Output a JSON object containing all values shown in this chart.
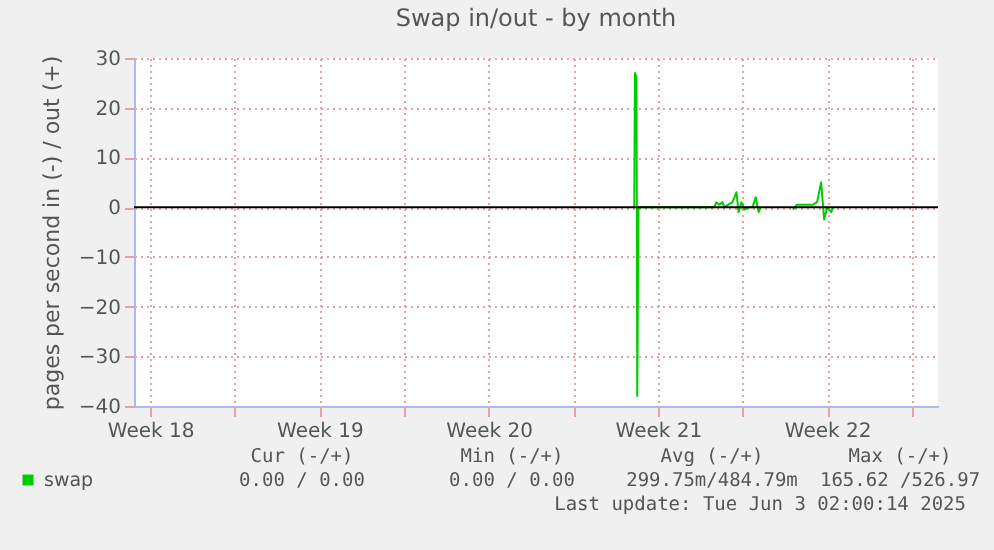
{
  "chart_data": {
    "type": "line",
    "title": "Swap in/out - by month",
    "ylabel": "pages per second in (-) / out (+)",
    "x": [
      "2025-05-21T12:30",
      "2025-05-21T13:15",
      "2025-05-21T14:45",
      "2025-05-21T15:30",
      "2025-05-21T16:40",
      "2025-05-24T20:00",
      "2025-05-24T22:00",
      "2025-05-25T00:50",
      "2025-05-25T04:00",
      "2025-05-25T06:00",
      "2025-05-25T10:00",
      "2025-05-25T14:00",
      "2025-05-25T18:00",
      "2025-05-25T20:00",
      "2025-05-25T23:00",
      "2025-05-26T02:00",
      "2025-05-26T06:00",
      "2025-05-26T10:00",
      "2025-05-26T13:00",
      "2025-05-26T16:00",
      "2025-05-26T18:00",
      "2025-05-27T08:00",
      "2025-05-28T02:00",
      "2025-05-28T06:00",
      "2025-05-28T14:00",
      "2025-05-28T22:00",
      "2025-05-29T02:00",
      "2025-05-29T06:00",
      "2025-05-29T09:00",
      "2025-05-29T12:00",
      "2025-05-29T16:00",
      "2025-05-29T18:00"
    ],
    "series": [
      {
        "name": "swap",
        "color": "#00cc00",
        "values": [
          0,
          27,
          26,
          -38,
          0,
          0,
          1,
          0.5,
          1,
          0,
          0.5,
          1,
          3,
          -1,
          1,
          -0.5,
          0,
          0,
          2,
          -1,
          0,
          null,
          -0.5,
          0.5,
          0.5,
          0.5,
          1,
          5,
          -2.5,
          0,
          -1,
          0
        ]
      }
    ],
    "xlim": [
      "2025-04-30T20:00",
      "2025-06-03T02:00"
    ],
    "xticks": [
      {
        "value": "2025-05-01T12:00",
        "label": "Week 18"
      },
      {
        "value": "2025-05-05T00:00",
        "label": null
      },
      {
        "value": "2025-05-08T12:00",
        "label": "Week 19"
      },
      {
        "value": "2025-05-12T00:00",
        "label": null
      },
      {
        "value": "2025-05-15T12:00",
        "label": "Week 20"
      },
      {
        "value": "2025-05-19T00:00",
        "label": null
      },
      {
        "value": "2025-05-22T12:00",
        "label": "Week 21"
      },
      {
        "value": "2025-05-26T00:00",
        "label": null
      },
      {
        "value": "2025-05-29T12:00",
        "label": "Week 22"
      },
      {
        "value": "2025-06-02T00:00",
        "label": null
      }
    ],
    "ylim": [
      -40,
      30
    ],
    "yticks": [
      -40,
      -30,
      -20,
      -10,
      0,
      10,
      20,
      30
    ],
    "ref_lines": [
      {
        "axis": "y",
        "value": 0,
        "color": "#000000"
      }
    ],
    "grid": true,
    "legend": "bottom left",
    "marker": "none",
    "line_style": "solid",
    "annotations": [
      "Cur (-/+)",
      "Min (-/+)",
      "Avg (-/+)",
      "Max (-/+)",
      "0.00 /   0.00",
      "0.00 /   0.00",
      "299.75m/484.79m",
      "165.62 /526.97",
      "Last update: Tue Jun  3 02:00:14 2025"
    ]
  }
}
